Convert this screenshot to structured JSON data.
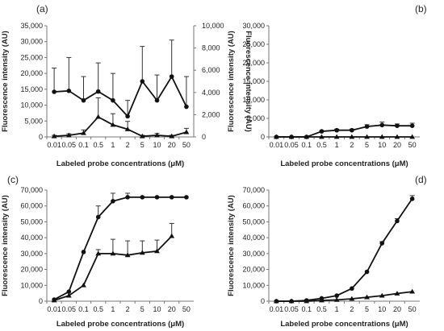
{
  "chart_data": [
    {
      "type": "line",
      "panel_label": "(a)",
      "xlabel": "Labeled probe concentrations (μM)",
      "ylabel": "Fluorescence intensity (AU)",
      "y2label": "Fluorescence intensity (AU)",
      "categories": [
        "0.01",
        "0.05",
        "0.1",
        "0.5",
        "1",
        "2",
        "5",
        "10",
        "20",
        "50"
      ],
      "ylim": [
        0,
        35000
      ],
      "yticks": [
        "0",
        "5,000",
        "10,000",
        "15,000",
        "20,000",
        "25,000",
        "30,000",
        "35,000"
      ],
      "y2lim": [
        0,
        10000
      ],
      "y2ticks": [
        "0",
        "2,000",
        "4,000",
        "6,000",
        "8,000",
        "10,000"
      ],
      "series": [
        {
          "marker": "circle",
          "axis": "left",
          "values": [
            14200,
            14500,
            11500,
            14300,
            11500,
            6500,
            17500,
            11500,
            19000,
            9500
          ],
          "err": [
            7500,
            10500,
            7500,
            9000,
            8500,
            5000,
            11000,
            8000,
            11500,
            9500
          ]
        },
        {
          "marker": "triangle",
          "axis": "left",
          "values": [
            200,
            500,
            1200,
            6300,
            3800,
            2400,
            200,
            500,
            200,
            1500
          ],
          "err": [
            300,
            500,
            1000,
            6000,
            3500,
            2500,
            300,
            600,
            300,
            1200
          ]
        }
      ]
    },
    {
      "type": "line",
      "panel_label": "(b)",
      "xlabel": "Labeled probe concentrations (μM)",
      "ylabel": "Fluorescence intensity (AU)",
      "categories": [
        "0.01",
        "0.05",
        "0.1",
        "0.5",
        "1",
        "2",
        "5",
        "10",
        "20",
        "50"
      ],
      "ylim": [
        0,
        30000
      ],
      "yticks": [
        "0",
        "5,000",
        "10,000",
        "15,000",
        "20,000",
        "25,000",
        "30,000"
      ],
      "series": [
        {
          "marker": "circle",
          "values": [
            0,
            0,
            0,
            1500,
            1800,
            1800,
            2800,
            3200,
            3000,
            3000
          ],
          "err": [
            0,
            0,
            0,
            200,
            300,
            300,
            500,
            800,
            500,
            700
          ]
        },
        {
          "marker": "triangle",
          "values": [
            0,
            0,
            0,
            0,
            0,
            0,
            0,
            0,
            0,
            0
          ],
          "err": [
            0,
            0,
            0,
            0,
            0,
            0,
            0,
            0,
            0,
            0
          ]
        }
      ]
    },
    {
      "type": "line",
      "panel_label": "(c)",
      "xlabel": "Labeled probe concentrations (μM)",
      "ylabel": "Fluorescence intensity (AU)",
      "categories": [
        "0.01",
        "0.05",
        "0.1",
        "0.5",
        "1",
        "2",
        "5",
        "10",
        "20",
        "50"
      ],
      "ylim": [
        0,
        70000
      ],
      "yticks": [
        "0",
        "10,000",
        "20,000",
        "30,000",
        "40,000",
        "50,000",
        "60,000",
        "70,000"
      ],
      "series": [
        {
          "marker": "circle",
          "values": [
            1000,
            6000,
            31000,
            53000,
            63000,
            65500,
            65500,
            65500,
            65500,
            65500
          ],
          "err": [
            0,
            0,
            0,
            7000,
            5000,
            2500,
            0,
            0,
            0,
            0
          ]
        },
        {
          "marker": "triangle",
          "values": [
            500,
            3500,
            10000,
            30000,
            30000,
            29000,
            30500,
            31500,
            41000,
            null
          ],
          "err": [
            0,
            0,
            0,
            2500,
            9000,
            9000,
            7500,
            7000,
            8000,
            0
          ]
        }
      ]
    },
    {
      "type": "line",
      "panel_label": "(d)",
      "xlabel": "Labeled probe concentrations (μM)",
      "ylabel": "Fluorescence intensity (AU)",
      "categories": [
        "0.01",
        "0.05",
        "0.1",
        "0.5",
        "1",
        "2",
        "5",
        "10",
        "20",
        "50"
      ],
      "ylim": [
        0,
        70000
      ],
      "yticks": [
        "0",
        "10,000",
        "20,000",
        "30,000",
        "40,000",
        "50,000",
        "60,000",
        "70,000"
      ],
      "series": [
        {
          "marker": "circle",
          "values": [
            0,
            0,
            500,
            1800,
            3500,
            8000,
            18500,
            36500,
            50500,
            64500
          ],
          "err": [
            0,
            0,
            0,
            0,
            0,
            0,
            0,
            1000,
            1500,
            2000
          ]
        },
        {
          "marker": "triangle",
          "values": [
            0,
            0,
            0,
            500,
            800,
            1500,
            2500,
            3500,
            4800,
            6000
          ],
          "err": [
            0,
            0,
            0,
            0,
            0,
            0,
            0,
            0,
            0,
            0
          ]
        }
      ]
    }
  ]
}
